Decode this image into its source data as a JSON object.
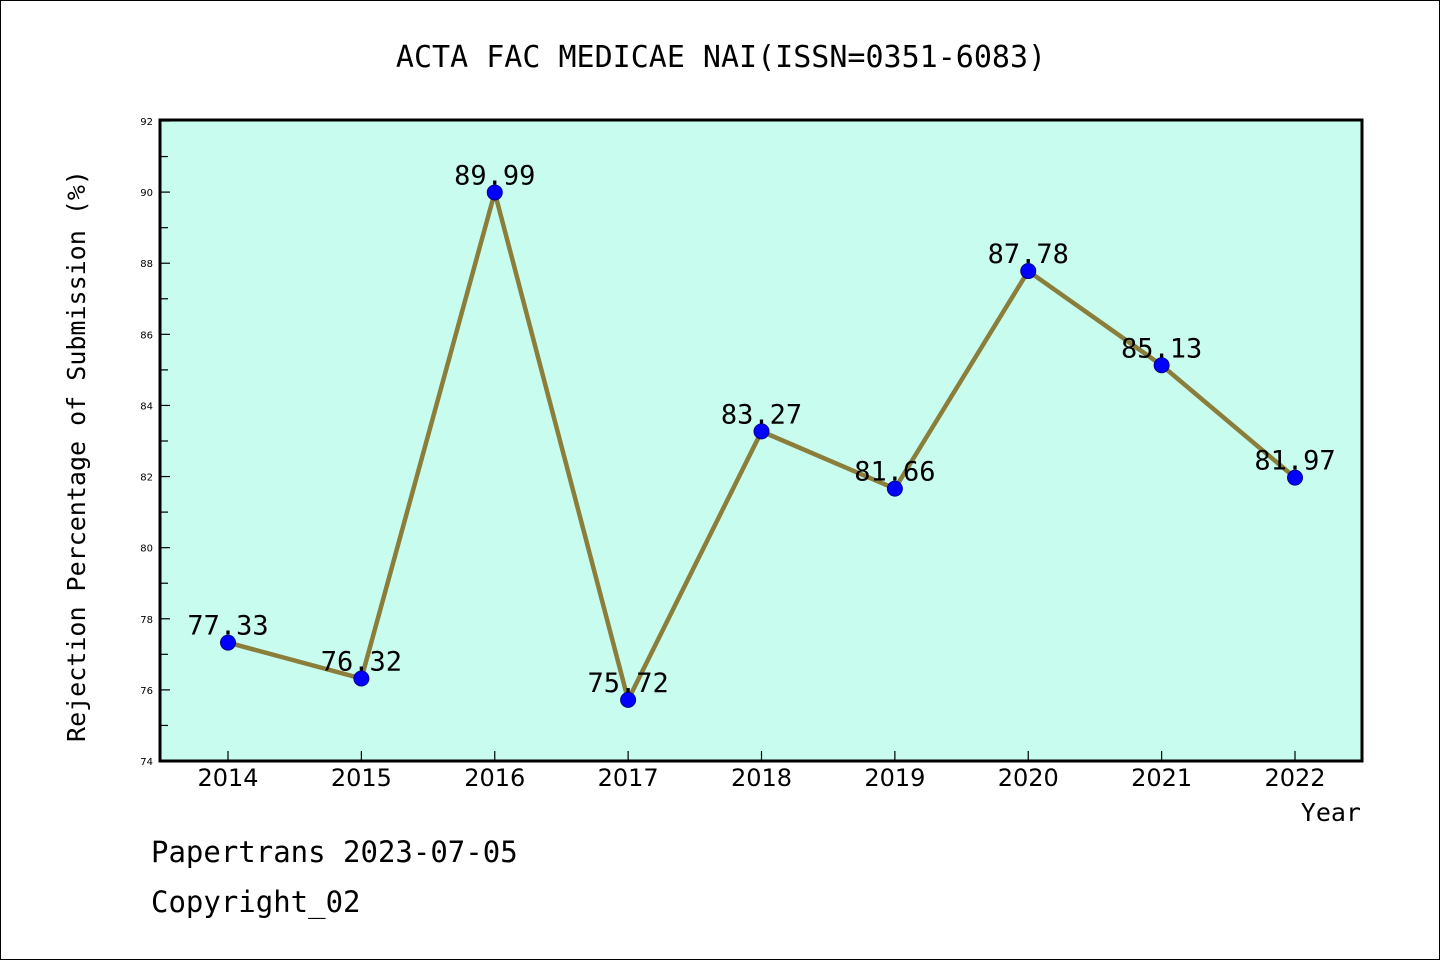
{
  "chart_data": {
    "type": "line",
    "title": "ACTA FAC MEDICAE NAI(ISSN=0351-6083)",
    "xlabel": "Year",
    "ylabel": "Rejection Percentage of Submission (%)",
    "categories": [
      "2014",
      "2015",
      "2016",
      "2017",
      "2018",
      "2019",
      "2020",
      "2021",
      "2022"
    ],
    "values": [
      77.33,
      76.32,
      89.99,
      75.72,
      83.27,
      81.66,
      87.78,
      85.13,
      81.97
    ],
    "data_labels": [
      "77.33",
      "76.32",
      "89.99",
      "75.72",
      "83.27",
      "81.66",
      "87.78",
      "85.13",
      "81.97"
    ],
    "ylim": [
      74,
      92
    ],
    "yticks": [
      "74",
      "76",
      "78",
      "80",
      "82",
      "84",
      "86",
      "88",
      "90",
      "92"
    ],
    "grid": false,
    "legend": "none",
    "colors": {
      "plot_background": "#c8fcee",
      "line": "#8b7d3a",
      "marker": "#0000ff",
      "axis": "#000000"
    }
  },
  "footer": {
    "line1": "Papertrans 2023-07-05",
    "line2": "Copyright_02"
  }
}
